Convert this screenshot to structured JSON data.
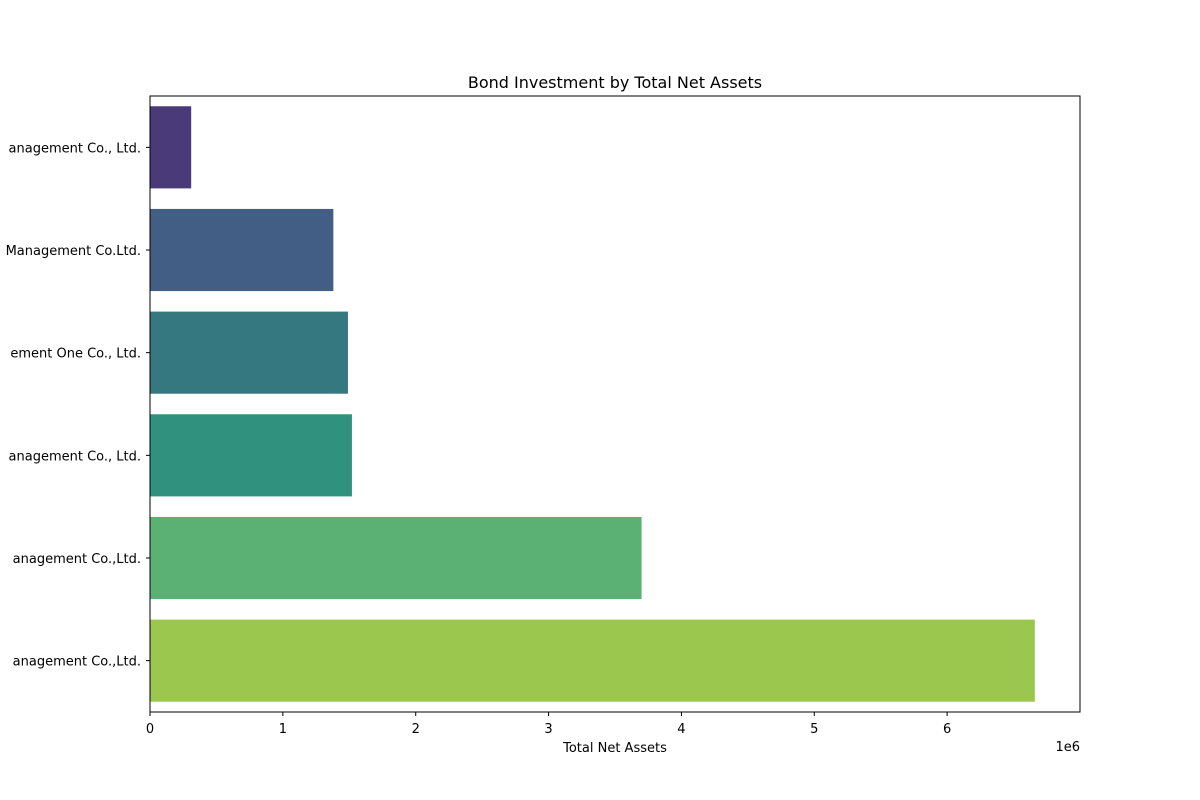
{
  "chart_data": {
    "type": "bar",
    "orientation": "horizontal",
    "title": "Bond Investment by Total Net Assets",
    "xlabel": "Total Net Assets",
    "ylabel": "",
    "x_offset_label": "1e6",
    "xlim": [
      0,
      7.0
    ],
    "x_ticks": [
      "0",
      "1",
      "2",
      "3",
      "4",
      "5",
      "6"
    ],
    "categories": [
      "anagement Co., Ltd.",
      "Management Co.Ltd.",
      "ement One Co., Ltd.",
      "anagement Co., Ltd.",
      "anagement Co.,Ltd.",
      "anagement Co.,Ltd."
    ],
    "values": [
      0.31,
      1.38,
      1.49,
      1.52,
      3.7,
      6.66
    ],
    "colors": [
      "#4a3b78",
      "#435e85",
      "#36787f",
      "#31917f",
      "#5bb174",
      "#9bc74e"
    ],
    "grid": false,
    "legend": "none"
  }
}
